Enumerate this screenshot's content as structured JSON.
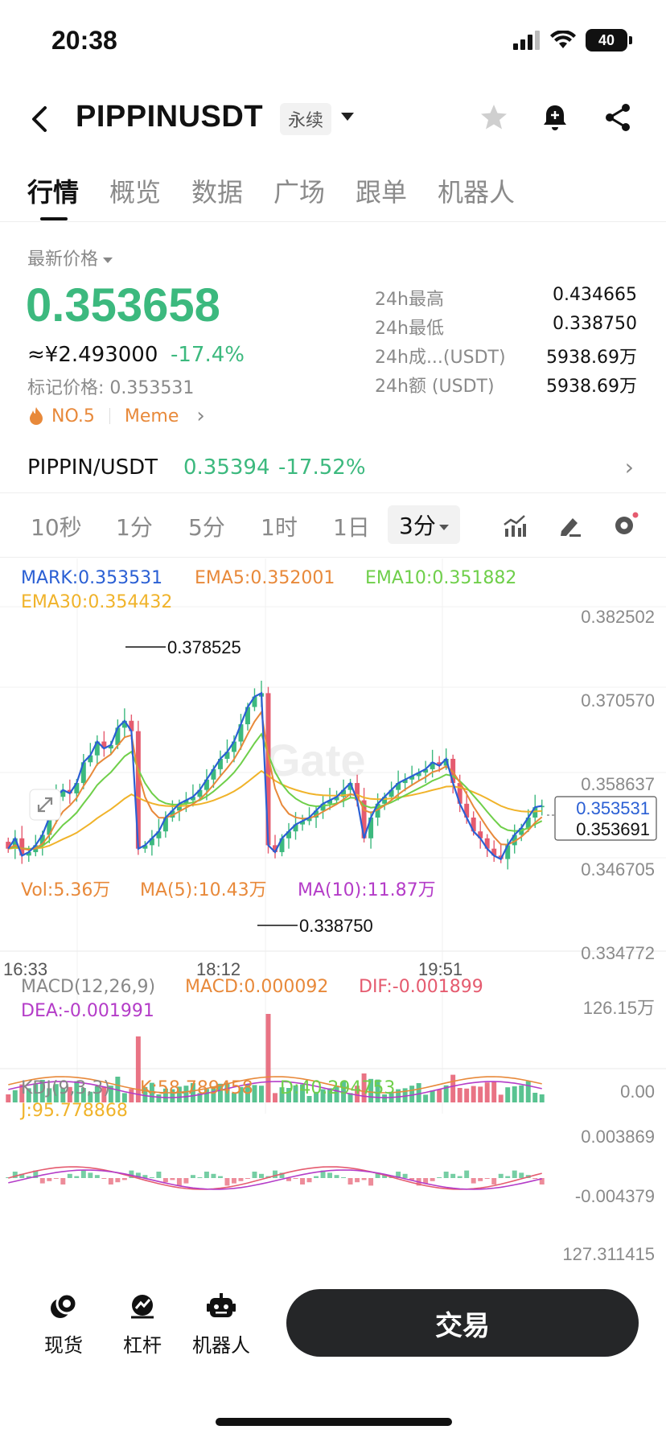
{
  "status_bar": {
    "time": "20:38",
    "battery": "40"
  },
  "header": {
    "title": "PIPPINUSDT",
    "contract_type": "永续"
  },
  "tabs": [
    {
      "label": "行情",
      "active": true
    },
    {
      "label": "概览",
      "active": false
    },
    {
      "label": "数据",
      "active": false
    },
    {
      "label": "广场",
      "active": false
    },
    {
      "label": "跟单",
      "active": false
    },
    {
      "label": "机器人",
      "active": false
    }
  ],
  "ticker": {
    "price_label": "最新价格",
    "last_price": "0.353658",
    "cny_price": "≈¥2.493000",
    "change": "-17.4%",
    "mark_price": "标记价格: 0.353531",
    "rank": "NO.5",
    "tag": "Meme"
  },
  "stats": [
    {
      "label": "24h最高",
      "value": "0.434665"
    },
    {
      "label": "24h最低",
      "value": "0.338750"
    },
    {
      "label": "24h成...(USDT)",
      "value": "5938.69万"
    },
    {
      "label": "24h额 (USDT)",
      "value": "5938.69万"
    }
  ],
  "spot": {
    "pair": "PIPPIN/USDT",
    "price": "0.35394",
    "change": "-17.52%"
  },
  "intervals": [
    {
      "label": "10秒",
      "active": false
    },
    {
      "label": "1分",
      "active": false
    },
    {
      "label": "5分",
      "active": false
    },
    {
      "label": "1时",
      "active": false
    },
    {
      "label": "1日",
      "active": false
    },
    {
      "label": "3分",
      "active": true
    }
  ],
  "indicators": {
    "mark": "MARK:0.353531",
    "ema5": "EMA5:0.352001",
    "ema10": "EMA10:0.351882",
    "ema30": "EMA30:0.354432",
    "vol": "Vol:5.36万",
    "ma5": "MA(5):10.43万",
    "ma10": "MA(10):11.87万",
    "macd_title": "MACD(12,26,9)",
    "macd": "MACD:0.000092",
    "dif": "DIF:-0.001899",
    "dea": "DEA:-0.001991",
    "kdj_title": "KDJ(9,3,3)",
    "k": "K:58.789458",
    "d": "D:40.294753",
    "j": "J:95.778868"
  },
  "chart_data": {
    "type": "candlestick",
    "price_axis_ticks": [
      "0.382502",
      "0.370570",
      "0.358637",
      "0.346705",
      "0.334772"
    ],
    "time_axis_ticks": [
      "16:33",
      "18:12",
      "19:51"
    ],
    "high_marker": "0.378525",
    "low_marker": "0.338750",
    "mark_price_tag": "0.353531",
    "last_price_tag": "0.353691",
    "ylim": [
      0.334772,
      0.382502
    ],
    "volume_axis_ticks": [
      "126.15万",
      "0.00"
    ],
    "macd_axis_ticks": [
      "0.003869",
      "-0.004379"
    ],
    "kdj_axis_tick": "127.311415",
    "close_series": [
      0.3475,
      0.349,
      0.3465,
      0.347,
      0.348,
      0.3495,
      0.352,
      0.355,
      0.356,
      0.3555,
      0.357,
      0.36,
      0.361,
      0.363,
      0.362,
      0.3625,
      0.365,
      0.366,
      0.3645,
      0.3475,
      0.348,
      0.349,
      0.35,
      0.352,
      0.353,
      0.354,
      0.3545,
      0.355,
      0.356,
      0.3575,
      0.359,
      0.3605,
      0.3615,
      0.363,
      0.3655,
      0.368,
      0.3695,
      0.37,
      0.348,
      0.347,
      0.349,
      0.35,
      0.351,
      0.3515,
      0.352,
      0.353,
      0.354,
      0.3545,
      0.355,
      0.356,
      0.357,
      0.3545,
      0.349,
      0.352,
      0.354,
      0.355,
      0.356,
      0.357,
      0.3575,
      0.358,
      0.3585,
      0.359,
      0.36,
      0.3595,
      0.3605,
      0.357,
      0.354,
      0.352,
      0.35,
      0.349,
      0.3475,
      0.3465,
      0.346,
      0.348,
      0.3495,
      0.3505,
      0.352,
      0.3535,
      0.3537
    ]
  },
  "bottom_nav": [
    {
      "label": "现货"
    },
    {
      "label": "杠杆"
    },
    {
      "label": "机器人"
    }
  ],
  "trade_button": "交易",
  "colors": {
    "up": "#3cb97e",
    "down": "#e55b6f",
    "mark": "#2a5fd4",
    "ema5": "#e8893a",
    "ema10": "#6fcf4a",
    "ema30": "#f0b32a",
    "purple": "#b43cc8"
  }
}
